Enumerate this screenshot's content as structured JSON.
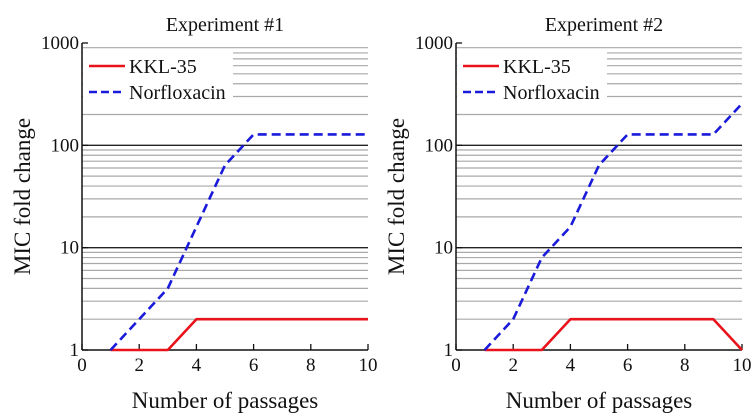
{
  "colors": {
    "kkl35": "#e8131b",
    "norfloxacin": "#1a1adb",
    "major_grid": "#222222",
    "minor_grid": "#a9a9a9"
  },
  "chart_data": [
    {
      "type": "line",
      "title": "Experiment #1",
      "xlabel": "Number of passages",
      "ylabel": "MIC fold change",
      "xlim": [
        0,
        10
      ],
      "ylim": [
        1,
        1000
      ],
      "yscale": "log",
      "grid": "horizontal, log minor",
      "legend_position": "top-left",
      "xticks": [
        "0",
        "2",
        "4",
        "6",
        "8",
        "10"
      ],
      "yticks": [
        "1",
        "10",
        "100",
        "1000"
      ],
      "series": [
        {
          "name": "KKL-35",
          "style": "solid",
          "x": [
            1,
            2,
            3,
            4,
            5,
            6,
            7,
            8,
            9,
            10
          ],
          "y": [
            1,
            1,
            1,
            2,
            2,
            2,
            2,
            2,
            2,
            2
          ]
        },
        {
          "name": "Norfloxacin",
          "style": "dashed",
          "x": [
            1,
            2,
            3,
            4,
            5,
            6,
            7,
            8,
            9,
            10
          ],
          "y": [
            1,
            2,
            4,
            16,
            64,
            128,
            128,
            128,
            128,
            128
          ]
        }
      ]
    },
    {
      "type": "line",
      "title": "Experiment #2",
      "xlabel": "Number of passages",
      "ylabel": "MIC fold change",
      "xlim": [
        0,
        10
      ],
      "ylim": [
        1,
        1000
      ],
      "yscale": "log",
      "grid": "horizontal, log minor",
      "legend_position": "top-left",
      "xticks": [
        "0",
        "2",
        "4",
        "6",
        "8",
        "10"
      ],
      "yticks": [
        "1",
        "10",
        "100",
        "1000"
      ],
      "series": [
        {
          "name": "KKL-35",
          "style": "solid",
          "x": [
            1,
            2,
            3,
            4,
            5,
            6,
            7,
            8,
            9,
            10
          ],
          "y": [
            1,
            1,
            1,
            2,
            2,
            2,
            2,
            2,
            2,
            1
          ]
        },
        {
          "name": "Norfloxacin",
          "style": "dashed",
          "x": [
            1,
            2,
            3,
            4,
            5,
            6,
            7,
            8,
            9,
            10
          ],
          "y": [
            1,
            2,
            8,
            16,
            64,
            128,
            128,
            128,
            128,
            256
          ]
        }
      ]
    }
  ]
}
